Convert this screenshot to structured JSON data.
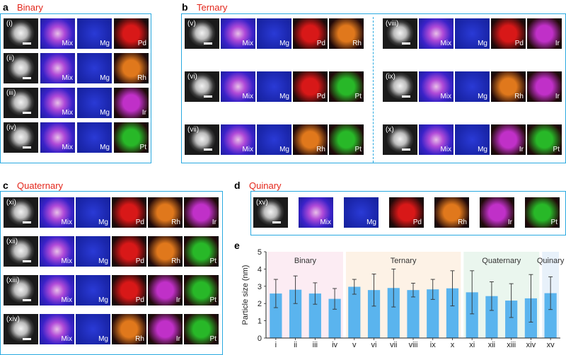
{
  "panels": {
    "a": {
      "letter": "a",
      "title": "Binary"
    },
    "b": {
      "letter": "b",
      "title": "Ternary"
    },
    "c": {
      "letter": "c",
      "title": "Quaternary"
    },
    "d": {
      "letter": "d",
      "title": "Quinary"
    },
    "e": {
      "letter": "e"
    }
  },
  "maps": {
    "a": [
      {
        "id": "(i)",
        "tiles": [
          "",
          "Mix",
          "Mg",
          "Pd"
        ]
      },
      {
        "id": "(ii)",
        "tiles": [
          "",
          "Mix",
          "Mg",
          "Rh"
        ]
      },
      {
        "id": "(iii)",
        "tiles": [
          "",
          "Mix",
          "Mg",
          "Ir"
        ]
      },
      {
        "id": "(iv)",
        "tiles": [
          "",
          "Mix",
          "Mg",
          "Pt"
        ]
      }
    ],
    "b_left": [
      {
        "id": "(v)",
        "tiles": [
          "",
          "Mix",
          "Mg",
          "Pd",
          "Rh"
        ]
      },
      {
        "id": "(vi)",
        "tiles": [
          "",
          "Mix",
          "Mg",
          "Pd",
          "Pt"
        ]
      },
      {
        "id": "(vii)",
        "tiles": [
          "",
          "Mix",
          "Mg",
          "Rh",
          "Pt"
        ]
      }
    ],
    "b_right": [
      {
        "id": "(viii)",
        "tiles": [
          "",
          "Mix",
          "Mg",
          "Pd",
          "Ir"
        ]
      },
      {
        "id": "(ix)",
        "tiles": [
          "",
          "Mix",
          "Mg",
          "Rh",
          "Ir"
        ]
      },
      {
        "id": "(x)",
        "tiles": [
          "",
          "Mix",
          "Mg",
          "Ir",
          "Pt"
        ]
      }
    ],
    "c": [
      {
        "id": "(xi)",
        "tiles": [
          "",
          "Mix",
          "Mg",
          "Pd",
          "Rh",
          "Ir"
        ]
      },
      {
        "id": "(xii)",
        "tiles": [
          "",
          "Mix",
          "Mg",
          "Pd",
          "Rh",
          "Pt"
        ]
      },
      {
        "id": "(xiii)",
        "tiles": [
          "",
          "Mix",
          "Mg",
          "Pd",
          "Ir",
          "Pt"
        ]
      },
      {
        "id": "(xiv)",
        "tiles": [
          "",
          "Mix",
          "Mg",
          "Rh",
          "Ir",
          "Pt"
        ]
      }
    ],
    "d": [
      {
        "id": "(xv)",
        "tiles": [
          "",
          "Mix",
          "Mg",
          "Pd",
          "Rh",
          "Ir",
          "Pt"
        ]
      }
    ]
  },
  "element_colors": {
    "Mix": "#7a3cc8",
    "Mg": "#1f2fc8",
    "Pd": "#d81818",
    "Rh": "#e0781c",
    "Ir": "#c030c8",
    "Pt": "#28b828"
  },
  "chart_data": {
    "type": "bar",
    "ylabel": "Particle size (nm)",
    "ylim": [
      0,
      5
    ],
    "yticks": [
      0,
      1,
      2,
      3,
      4,
      5
    ],
    "categories": [
      "i",
      "ii",
      "iii",
      "iv",
      "v",
      "vi",
      "vii",
      "viii",
      "ix",
      "x",
      "xi",
      "xii",
      "xiii",
      "xiv",
      "xv"
    ],
    "values": [
      2.58,
      2.8,
      2.58,
      2.27,
      2.97,
      2.78,
      2.9,
      2.78,
      2.82,
      2.88,
      2.65,
      2.43,
      2.17,
      2.3,
      2.6
    ],
    "errors": [
      0.82,
      0.8,
      0.62,
      0.6,
      0.43,
      0.93,
      1.1,
      0.4,
      0.58,
      1.02,
      1.25,
      0.83,
      0.98,
      1.38,
      0.95
    ],
    "groups": [
      {
        "label": "Binary",
        "start": 0,
        "end": 3,
        "color": "#fcecf3"
      },
      {
        "label": "Ternary",
        "start": 4,
        "end": 9,
        "color": "#fdf2e6"
      },
      {
        "label": "Quaternary",
        "start": 10,
        "end": 13,
        "color": "#eaf6ee"
      },
      {
        "label": "Quinary",
        "start": 14,
        "end": 14,
        "color": "#e8f1fa"
      }
    ],
    "bar_color": "#5ab4ee"
  }
}
